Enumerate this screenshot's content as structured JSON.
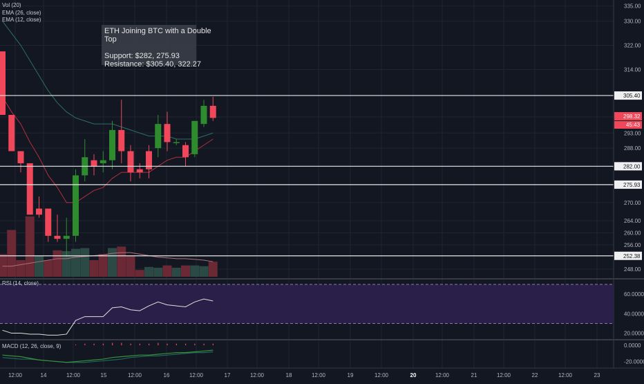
{
  "chart_data": {
    "type": "candlestick",
    "indicator_labels": {
      "volume": "Vol (20)",
      "ema26": "EMA (26, close)",
      "ema12": "EMA (12, close)",
      "rsi": "RSI (14, close)",
      "macd": "MACD (12, 26, close, 9)"
    },
    "annotation": {
      "title_line1": "ETH Joining BTC with a Double",
      "title_line2": "Top",
      "support": "Support: $282, 275.93",
      "resistance": "Resistance: $305.40, 322.27"
    },
    "x_ticks": [
      "12:00",
      "14",
      "12:00",
      "15",
      "12:00",
      "16",
      "12:00",
      "17",
      "12:00",
      "18",
      "12:00",
      "19",
      "12:00",
      "20",
      "12:00",
      "21",
      "12:00",
      "22",
      "12:00",
      "23"
    ],
    "price_axis": {
      "ticks": [
        "335.00",
        "330.00",
        "322.00",
        "314.00",
        "293.00",
        "288.00",
        "270.00",
        "264.00",
        "260.00",
        "256.00",
        "248.00"
      ],
      "ylim": [
        245,
        337
      ]
    },
    "horizontal_levels": [
      "305.40",
      "282.00",
      "275.93",
      "252.38"
    ],
    "last_price": "298.32",
    "countdown": "45:43",
    "candles": [
      {
        "o": 320,
        "h": 320,
        "l": 299,
        "c": 299
      },
      {
        "o": 299,
        "h": 299,
        "l": 287,
        "c": 287
      },
      {
        "o": 287,
        "h": 287,
        "l": 280,
        "c": 283
      },
      {
        "o": 283,
        "h": 283,
        "l": 266,
        "c": 266
      },
      {
        "o": 268,
        "h": 272,
        "l": 265,
        "c": 266
      },
      {
        "o": 268,
        "h": 268,
        "l": 257,
        "c": 259
      },
      {
        "o": 259,
        "h": 266,
        "l": 257,
        "c": 258
      },
      {
        "o": 258,
        "h": 265,
        "l": 252,
        "c": 259
      },
      {
        "o": 259,
        "h": 281,
        "l": 257,
        "c": 279
      },
      {
        "o": 279,
        "h": 291,
        "l": 277,
        "c": 285
      },
      {
        "o": 284,
        "h": 286,
        "l": 279,
        "c": 282
      },
      {
        "o": 283,
        "h": 287,
        "l": 280,
        "c": 284
      },
      {
        "o": 284,
        "h": 297,
        "l": 281,
        "c": 294
      },
      {
        "o": 294,
        "h": 304,
        "l": 283,
        "c": 287
      },
      {
        "o": 287,
        "h": 289,
        "l": 277,
        "c": 280
      },
      {
        "o": 281,
        "h": 283,
        "l": 278,
        "c": 280
      },
      {
        "o": 287,
        "h": 289,
        "l": 278,
        "c": 281
      },
      {
        "o": 288,
        "h": 299,
        "l": 285,
        "c": 296
      },
      {
        "o": 296,
        "h": 300,
        "l": 287,
        "c": 290
      },
      {
        "o": 290,
        "h": 291,
        "l": 289,
        "c": 290
      },
      {
        "o": 289,
        "h": 290,
        "l": 282,
        "c": 285
      },
      {
        "o": 286,
        "h": 297,
        "l": 285,
        "c": 297
      },
      {
        "o": 296,
        "h": 304,
        "l": 295,
        "c": 302
      },
      {
        "o": 302,
        "h": 305,
        "l": 297,
        "c": 298
      }
    ],
    "volume": [
      {
        "v": 30,
        "up": false
      },
      {
        "v": 62,
        "up": false
      },
      {
        "v": 22,
        "up": false
      },
      {
        "v": 80,
        "up": false
      },
      {
        "v": 28,
        "up": true
      },
      {
        "v": 22,
        "up": false
      },
      {
        "v": 35,
        "up": false
      },
      {
        "v": 34,
        "up": true
      },
      {
        "v": 37,
        "up": true
      },
      {
        "v": 38,
        "up": true
      },
      {
        "v": 22,
        "up": false
      },
      {
        "v": 30,
        "up": false
      },
      {
        "v": 38,
        "up": true
      },
      {
        "v": 40,
        "up": false
      },
      {
        "v": 28,
        "up": false
      },
      {
        "v": 9,
        "up": false
      },
      {
        "v": 13,
        "up": true
      },
      {
        "v": 12,
        "up": true
      },
      {
        "v": 15,
        "up": false
      },
      {
        "v": 12,
        "up": true
      },
      {
        "v": 15,
        "up": false
      },
      {
        "v": 15,
        "up": true
      },
      {
        "v": 14,
        "up": true
      },
      {
        "v": 20,
        "up": false
      }
    ],
    "volume_ma": [
      14,
      14,
      16,
      18,
      20,
      22,
      24,
      24,
      26,
      27,
      28,
      29,
      31,
      32,
      32,
      30,
      28,
      26,
      25,
      24,
      24,
      23,
      22,
      20
    ],
    "ema12": [
      305,
      300,
      296,
      290,
      285,
      279,
      275,
      270,
      270,
      272,
      274,
      275,
      278,
      280,
      280,
      280,
      280,
      282,
      284,
      285,
      285,
      287,
      289,
      291
    ],
    "ema26": [
      330,
      326,
      322,
      317,
      312,
      307,
      303,
      300,
      298,
      297,
      296,
      296,
      296,
      295,
      294,
      293,
      292,
      292,
      292,
      291,
      291,
      291,
      292,
      293
    ],
    "rsi": {
      "ticks": [
        "60.0000",
        "40.0000",
        "20.0000"
      ],
      "ylim": [
        14,
        75
      ],
      "upper": 70,
      "lower": 30,
      "values": [
        23,
        20,
        20,
        19,
        19,
        18,
        18,
        19,
        33,
        37,
        37,
        37,
        46,
        47,
        44,
        43,
        48,
        52,
        49,
        48,
        47,
        52,
        55,
        53
      ]
    },
    "macd": {
      "ticks": [
        "0.0000",
        "-20.0000"
      ],
      "ylim": [
        -28,
        6
      ],
      "macd": [
        -12,
        -13,
        -14,
        -16,
        -18,
        -19,
        -20,
        -21,
        -20,
        -19,
        -18,
        -17,
        -15,
        -14,
        -13,
        -12,
        -12,
        -11,
        -10,
        -9,
        -9,
        -8,
        -7,
        -6
      ],
      "signal": [
        -15,
        -16,
        -17,
        -17,
        -18,
        -19,
        -20,
        -21,
        -21,
        -21,
        -20,
        -19,
        -18,
        -17,
        -15,
        -14,
        -13,
        -13,
        -12,
        -11,
        -10,
        -9,
        -9,
        -8
      ],
      "hist": [
        0,
        0,
        0,
        0,
        0,
        0,
        0,
        0,
        1,
        2,
        2,
        2,
        3,
        3,
        2,
        2,
        2,
        3,
        2,
        2,
        2,
        2,
        2,
        2
      ]
    },
    "grid": true,
    "colors": {
      "background": "#131722",
      "grid": "#1f2433",
      "up": "#2e8b2e",
      "down": "#f0475a",
      "vol_up": "#2c4a45",
      "vol_down": "#6b2835",
      "vol_ma": "#b07078",
      "ema12": "#b03040",
      "ema26": "#2e6e63",
      "rsi_line": "#e0e0e0",
      "rsi_band": "#2a1f48",
      "rsi_bound": "#8a7ab0",
      "macd_line": "#3b8f3b",
      "signal_line": "#1d6b5a",
      "hist": "#f0475a",
      "level_line": "#e8e8e8",
      "axis_text": "#b2b5be",
      "separator": "#363a45"
    }
  }
}
